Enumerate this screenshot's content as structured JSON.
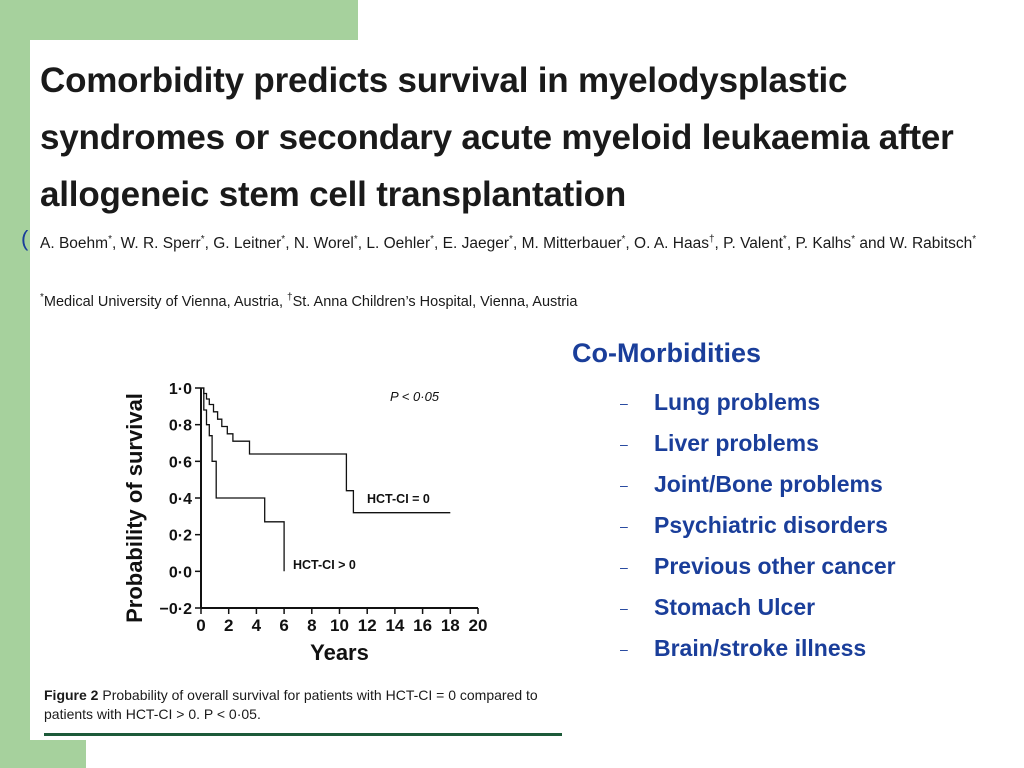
{
  "paper": {
    "title": "Comorbidity predicts survival in myelodysplastic syndromes or secondary acute myeloid leukaemia after allogeneic stem cell transplantation",
    "authors": [
      {
        "name": "A. Boehm",
        "mark": "*",
        "sep": ", "
      },
      {
        "name": "W. R. Sperr",
        "mark": "*",
        "sep": ", "
      },
      {
        "name": "G. Leitner",
        "mark": "*",
        "sep": ", "
      },
      {
        "name": "N. Worel",
        "mark": "*",
        "sep": ", "
      },
      {
        "name": "L. Oehler",
        "mark": "*",
        "sep": ", "
      },
      {
        "name": "E. Jaeger",
        "mark": "*",
        "sep": ", "
      },
      {
        "name": "M. Mitterbauer",
        "mark": "*",
        "sep": ", "
      },
      {
        "name": "O. A. Haas",
        "mark": "†",
        "sep": ", "
      },
      {
        "name": "P. Valent",
        "mark": "*",
        "sep": ", "
      },
      {
        "name": "P. Kalhs",
        "mark": "*",
        "sep": " and "
      },
      {
        "name": "W. Rabitsch",
        "mark": "*",
        "sep": ""
      }
    ],
    "affiliations": [
      {
        "mark": "*",
        "text": "Medical University of Vienna, Austria, "
      },
      {
        "mark": "†",
        "text": "St. Anna Children’s Hospital, Vienna, Austria"
      }
    ],
    "stray_mark": "(",
    "figure_caption": {
      "label": "Figure 2",
      "text": "Probability of overall survival for patients with HCT-CI = 0 compared to patients with HCT-CI > 0. P < 0·05."
    }
  },
  "colors": {
    "green_background": "#a6d19d",
    "heading_blue": "#1a3e9a",
    "caption_rule": "#1d5a39",
    "text": "#1a1a1a"
  },
  "morbidities": {
    "heading": "Co-Morbidities",
    "bullet": "–",
    "items": [
      "Lung problems",
      "Liver problems",
      "Joint/Bone problems",
      "Psychiatric disorders",
      "Previous other cancer",
      "Stomach Ulcer",
      "Brain/stroke illness"
    ]
  },
  "chart_data": {
    "type": "line",
    "step": true,
    "title": "",
    "xlabel": "Years",
    "ylabel": "Probability of survival",
    "xlim": [
      0,
      20
    ],
    "ylim": [
      -0.2,
      1.0
    ],
    "xticks": [
      0,
      2,
      4,
      6,
      8,
      10,
      12,
      14,
      16,
      18,
      20
    ],
    "yticks": [
      1.0,
      0.8,
      0.6,
      0.4,
      0.2,
      0.0,
      -0.2
    ],
    "ytick_labels": [
      "1·0",
      "0·8",
      "0·6",
      "0·4",
      "0·2",
      "0·0",
      "−0·2"
    ],
    "grid": false,
    "annotation": "P < 0·05",
    "series": [
      {
        "name": "HCT-CI = 0",
        "x": [
          0,
          0.2,
          0.4,
          0.6,
          0.9,
          1.2,
          1.5,
          1.9,
          2.3,
          3.5,
          10.5,
          11.0,
          18.0
        ],
        "y": [
          1.0,
          0.97,
          0.94,
          0.91,
          0.87,
          0.83,
          0.79,
          0.75,
          0.71,
          0.64,
          0.44,
          0.32,
          0.32
        ]
      },
      {
        "name": "HCT-CI > 0",
        "x": [
          0,
          0.2,
          0.4,
          0.6,
          0.8,
          1.1,
          4.6,
          6.0
        ],
        "y": [
          1.0,
          0.88,
          0.8,
          0.74,
          0.6,
          0.4,
          0.27,
          0.0
        ]
      }
    ]
  }
}
